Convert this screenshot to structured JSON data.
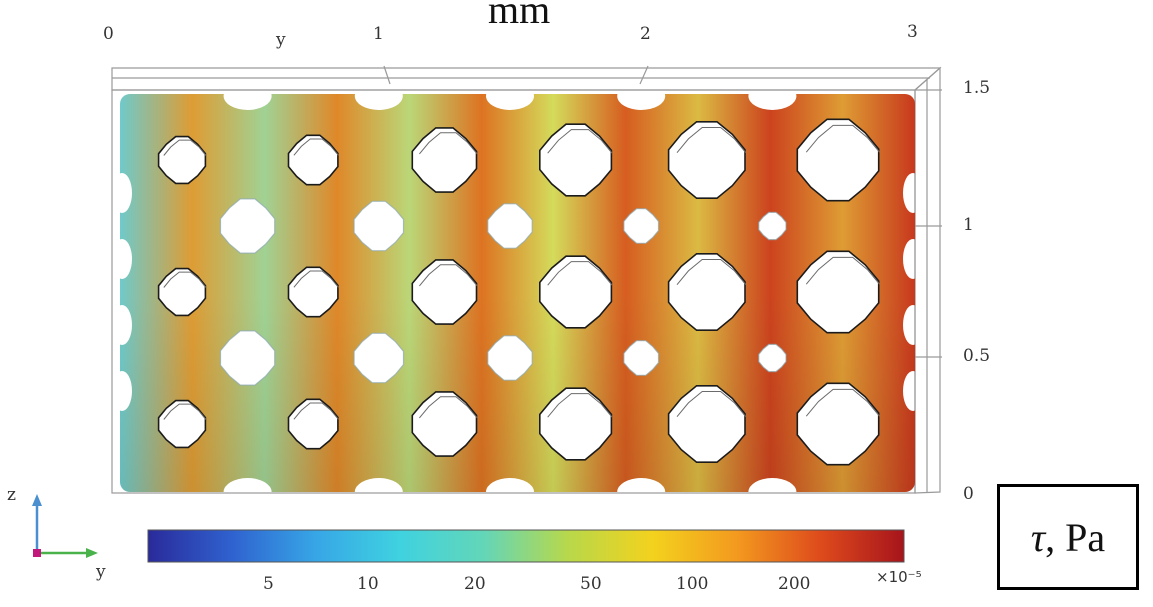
{
  "figure": {
    "unit_label": "mm",
    "quantity_label": {
      "symbol": "τ",
      "rest": ", Pa"
    },
    "top_axis": {
      "axis_letter": "y",
      "ticks": [
        "0",
        "1",
        "2",
        "3"
      ]
    },
    "right_axis": {
      "ticks": [
        "1.5",
        "1",
        "0.5",
        "0"
      ]
    },
    "triad": {
      "up_label": "z",
      "right_label": "y",
      "up_color": "#4a8fd0",
      "right_color": "#49b24a"
    },
    "colorbar": {
      "ticks": [
        "5",
        "10",
        "20",
        "50",
        "100",
        "200"
      ],
      "scale_label": "×10⁻⁵",
      "colors": [
        "#2a2a9a",
        "#2f62cf",
        "#37a6e6",
        "#3fd2e0",
        "#63d6b8",
        "#b8d84a",
        "#f3d21e",
        "#f39a1f",
        "#de4b1c",
        "#a7141c"
      ]
    },
    "holes": {
      "rows": 5,
      "columns": 6,
      "sizes": [
        [
          0.38,
          0.4,
          0.52,
          0.58,
          0.62,
          0.66
        ],
        [
          0.44,
          0.4,
          0.36,
          0.28,
          0.22,
          0.2
        ],
        [
          0.38,
          0.4,
          0.52,
          0.58,
          0.62,
          0.66
        ],
        [
          0.44,
          0.4,
          0.36,
          0.28,
          0.22,
          0.2
        ],
        [
          0.38,
          0.4,
          0.52,
          0.58,
          0.62,
          0.66
        ]
      ]
    },
    "stress_field": {
      "column_levels": [
        0.05,
        0.55,
        0.18,
        0.62,
        0.25,
        0.7,
        0.32,
        0.8,
        0.45,
        0.92,
        0.55,
        0.97
      ],
      "colors": {
        "low": "#5cc7df",
        "mid": "#d9dc55",
        "high": "#e07a22",
        "peak": "#c6311d"
      }
    }
  }
}
